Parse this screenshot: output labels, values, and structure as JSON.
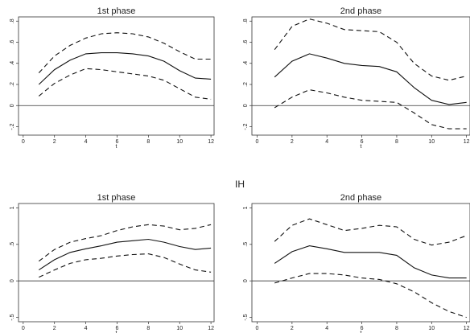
{
  "section_label": "IH",
  "chart_data": [
    {
      "type": "line",
      "title": "1st phase",
      "xlabel": "t",
      "ylabel": "",
      "x": [
        1,
        2,
        3,
        4,
        5,
        6,
        7,
        8,
        9,
        10,
        11,
        12
      ],
      "xlim": [
        -0.3,
        12.2
      ],
      "ylim": [
        -0.28,
        0.84
      ],
      "xticks": [
        0,
        2,
        4,
        6,
        8,
        10,
        12
      ],
      "yticks": [
        -0.2,
        0,
        0.2,
        0.4,
        0.6,
        0.8
      ],
      "ytick_labels": [
        "-.2",
        "0",
        ".2",
        ".4",
        ".6",
        ".8"
      ],
      "zero_line": 0,
      "grid": false,
      "series": [
        {
          "values": [
            0.31,
            0.47,
            0.57,
            0.64,
            0.68,
            0.69,
            0.68,
            0.65,
            0.59,
            0.51,
            0.44,
            0.44
          ],
          "style": "dashed"
        },
        {
          "values": [
            0.2,
            0.34,
            0.43,
            0.49,
            0.5,
            0.5,
            0.49,
            0.47,
            0.42,
            0.33,
            0.26,
            0.25
          ],
          "style": "solid"
        },
        {
          "values": [
            0.09,
            0.21,
            0.29,
            0.35,
            0.34,
            0.32,
            0.3,
            0.28,
            0.24,
            0.16,
            0.08,
            0.06
          ],
          "style": "dashed"
        }
      ]
    },
    {
      "type": "line",
      "title": "2nd phase",
      "xlabel": "t",
      "ylabel": "",
      "x": [
        1,
        2,
        3,
        4,
        5,
        6,
        7,
        8,
        9,
        10,
        11,
        12
      ],
      "xlim": [
        -0.3,
        12.2
      ],
      "ylim": [
        -0.28,
        0.84
      ],
      "xticks": [
        0,
        2,
        4,
        6,
        8,
        10,
        12
      ],
      "yticks": [
        -0.2,
        0,
        0.2,
        0.4,
        0.6,
        0.8
      ],
      "ytick_labels": [
        "-.2",
        "0",
        ".2",
        ".4",
        ".6",
        ".8"
      ],
      "zero_line": 0,
      "grid": false,
      "series": [
        {
          "values": [
            0.53,
            0.75,
            0.82,
            0.78,
            0.72,
            0.71,
            0.7,
            0.6,
            0.4,
            0.28,
            0.24,
            0.28
          ],
          "style": "dashed"
        },
        {
          "values": [
            0.27,
            0.42,
            0.49,
            0.45,
            0.4,
            0.38,
            0.37,
            0.32,
            0.17,
            0.05,
            0.01,
            0.03
          ],
          "style": "solid"
        },
        {
          "values": [
            -0.02,
            0.08,
            0.15,
            0.12,
            0.08,
            0.05,
            0.04,
            0.03,
            -0.07,
            -0.18,
            -0.22,
            -0.22
          ],
          "style": "dashed"
        }
      ]
    },
    {
      "type": "line",
      "title": "1st phase",
      "xlabel": "t",
      "ylabel": "",
      "x": [
        1,
        2,
        3,
        4,
        5,
        6,
        7,
        8,
        9,
        10,
        11,
        12
      ],
      "xlim": [
        -0.3,
        12.2
      ],
      "ylim": [
        -0.56,
        1.06
      ],
      "xticks": [
        0,
        2,
        4,
        6,
        8,
        10,
        12
      ],
      "yticks": [
        -0.5,
        0,
        0.5,
        1
      ],
      "ytick_labels": [
        "-.5",
        "0",
        ".5",
        "1"
      ],
      "zero_line": 0,
      "grid": false,
      "series": [
        {
          "values": [
            0.27,
            0.43,
            0.53,
            0.58,
            0.62,
            0.69,
            0.74,
            0.77,
            0.75,
            0.7,
            0.72,
            0.77
          ],
          "style": "dashed"
        },
        {
          "values": [
            0.15,
            0.29,
            0.39,
            0.44,
            0.48,
            0.53,
            0.55,
            0.57,
            0.53,
            0.47,
            0.43,
            0.45
          ],
          "style": "solid"
        },
        {
          "values": [
            0.05,
            0.15,
            0.24,
            0.29,
            0.31,
            0.34,
            0.36,
            0.37,
            0.32,
            0.23,
            0.15,
            0.12
          ],
          "style": "dashed"
        }
      ]
    },
    {
      "type": "line",
      "title": "2nd phase",
      "xlabel": "t",
      "ylabel": "",
      "x": [
        1,
        2,
        3,
        4,
        5,
        6,
        7,
        8,
        9,
        10,
        11,
        12
      ],
      "xlim": [
        -0.3,
        12.2
      ],
      "ylim": [
        -0.56,
        1.06
      ],
      "xticks": [
        0,
        2,
        4,
        6,
        8,
        10,
        12
      ],
      "yticks": [
        -0.5,
        0,
        0.5,
        1
      ],
      "ytick_labels": [
        "-.5",
        "0",
        ".5",
        "1"
      ],
      "zero_line": 0,
      "grid": false,
      "series": [
        {
          "values": [
            0.54,
            0.76,
            0.85,
            0.77,
            0.69,
            0.72,
            0.76,
            0.74,
            0.57,
            0.49,
            0.53,
            0.62
          ],
          "style": "dashed"
        },
        {
          "values": [
            0.24,
            0.4,
            0.48,
            0.44,
            0.39,
            0.39,
            0.39,
            0.35,
            0.18,
            0.08,
            0.04,
            0.04
          ],
          "style": "solid"
        },
        {
          "values": [
            -0.03,
            0.04,
            0.1,
            0.1,
            0.08,
            0.04,
            0.02,
            -0.04,
            -0.15,
            -0.3,
            -0.42,
            -0.5
          ],
          "style": "dashed"
        }
      ]
    }
  ]
}
